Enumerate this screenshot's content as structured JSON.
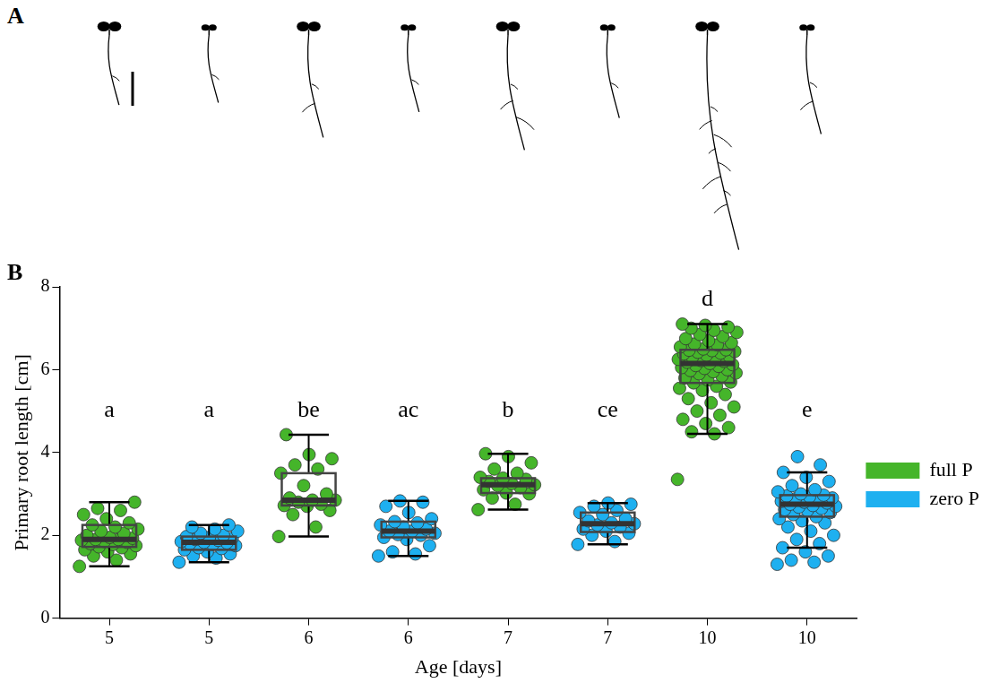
{
  "panel_a": {
    "label": "A"
  },
  "chart_data": {
    "type": "box",
    "panel_label": "B",
    "x_label": "Age [days]",
    "y_label": "Primary root length [cm]",
    "categories": [
      "5",
      "5",
      "6",
      "6",
      "7",
      "7",
      "10",
      "10"
    ],
    "annotations": [
      "a",
      "a",
      "be",
      "ac",
      "b",
      "ce",
      "d",
      "e"
    ],
    "ylim": [
      0,
      8
    ],
    "yticks": [
      0,
      2,
      4,
      6,
      8
    ],
    "grid": false,
    "legend": "right",
    "series": [
      {
        "name": "full P",
        "color": "#45b52a",
        "marker": "circle",
        "values": [
          [
            1.25,
            1.4,
            1.5,
            1.55,
            1.6,
            1.65,
            1.7,
            1.72,
            1.75,
            1.78,
            1.8,
            1.83,
            1.85,
            1.88,
            1.9,
            1.9,
            1.93,
            1.95,
            2.0,
            2.05,
            2.1,
            2.15,
            2.2,
            2.25,
            2.3,
            2.4,
            2.5,
            2.6,
            2.65,
            2.8
          ],
          null,
          [
            1.97,
            2.2,
            2.5,
            2.6,
            2.7,
            2.72,
            2.75,
            2.8,
            2.85,
            2.85,
            2.9,
            3.0,
            3.2,
            3.5,
            3.6,
            3.7,
            3.85,
            3.95,
            4.43
          ],
          null,
          [
            2.62,
            2.75,
            2.9,
            3.0,
            3.02,
            3.1,
            3.15,
            3.2,
            3.22,
            3.25,
            3.3,
            3.35,
            3.38,
            3.4,
            3.5,
            3.6,
            3.75,
            3.9,
            3.97
          ],
          null,
          [
            3.35,
            4.45,
            4.5,
            4.6,
            4.7,
            4.8,
            4.9,
            5.0,
            5.1,
            5.2,
            5.3,
            5.4,
            5.5,
            5.55,
            5.6,
            5.68,
            5.7,
            5.75,
            5.8,
            5.85,
            5.9,
            5.92,
            5.95,
            5.98,
            6.0,
            6.03,
            6.05,
            6.08,
            6.1,
            6.12,
            6.15,
            6.18,
            6.2,
            6.22,
            6.25,
            6.28,
            6.3,
            6.32,
            6.35,
            6.38,
            6.4,
            6.42,
            6.44,
            6.46,
            6.47,
            6.48,
            6.5,
            6.55,
            6.6,
            6.62,
            6.65,
            6.7,
            6.75,
            6.8,
            6.85,
            6.9,
            6.95,
            7.0,
            7.03,
            7.07,
            7.1
          ],
          null
        ],
        "boxes": [
          {
            "whisker_low": 1.25,
            "q1": 1.72,
            "median": 1.9,
            "q3": 2.25,
            "whisker_high": 2.8
          },
          null,
          {
            "whisker_low": 1.97,
            "q1": 2.72,
            "median": 2.85,
            "q3": 3.5,
            "whisker_high": 4.43
          },
          null,
          {
            "whisker_low": 2.62,
            "q1": 3.02,
            "median": 3.22,
            "q3": 3.38,
            "whisker_high": 3.97
          },
          null,
          {
            "whisker_low": 4.45,
            "q1": 5.68,
            "median": 6.15,
            "q3": 6.48,
            "whisker_high": 7.1
          },
          null
        ]
      },
      {
        "name": "zero P",
        "color": "#1eb0f0",
        "marker": "circle",
        "values": [
          null,
          [
            1.35,
            1.45,
            1.5,
            1.55,
            1.6,
            1.65,
            1.68,
            1.7,
            1.75,
            1.78,
            1.8,
            1.82,
            1.83,
            1.85,
            1.88,
            1.9,
            1.93,
            1.95,
            1.97,
            2.0,
            2.05,
            2.1,
            2.15,
            2.2,
            2.25
          ],
          null,
          [
            1.5,
            1.55,
            1.6,
            1.75,
            1.9,
            1.95,
            2.0,
            2.02,
            2.05,
            2.1,
            2.1,
            2.15,
            2.2,
            2.25,
            2.3,
            2.33,
            2.4,
            2.55,
            2.7,
            2.8,
            2.83
          ],
          null,
          [
            1.78,
            1.85,
            2.0,
            2.05,
            2.1,
            2.15,
            2.2,
            2.25,
            2.28,
            2.3,
            2.35,
            2.4,
            2.5,
            2.55,
            2.6,
            2.7,
            2.75,
            2.78
          ],
          null,
          [
            1.3,
            1.35,
            1.4,
            1.5,
            1.6,
            1.7,
            1.8,
            1.9,
            2.0,
            2.1,
            2.2,
            2.3,
            2.35,
            2.4,
            2.45,
            2.5,
            2.55,
            2.6,
            2.62,
            2.65,
            2.68,
            2.7,
            2.72,
            2.75,
            2.78,
            2.8,
            2.82,
            2.85,
            2.88,
            2.9,
            2.93,
            2.95,
            2.97,
            3.0,
            3.05,
            3.1,
            3.2,
            3.3,
            3.4,
            3.52,
            3.7,
            3.9
          ]
        ],
        "boxes": [
          null,
          {
            "whisker_low": 1.35,
            "q1": 1.65,
            "median": 1.83,
            "q3": 1.97,
            "whisker_high": 2.25
          },
          null,
          {
            "whisker_low": 1.5,
            "q1": 1.95,
            "median": 2.1,
            "q3": 2.33,
            "whisker_high": 2.83
          },
          null,
          {
            "whisker_low": 1.78,
            "q1": 2.08,
            "median": 2.28,
            "q3": 2.55,
            "whisker_high": 2.78
          },
          null,
          {
            "whisker_low": 1.7,
            "q1": 2.45,
            "median": 2.75,
            "q3": 2.97,
            "whisker_high": 3.52
          }
        ]
      }
    ]
  }
}
